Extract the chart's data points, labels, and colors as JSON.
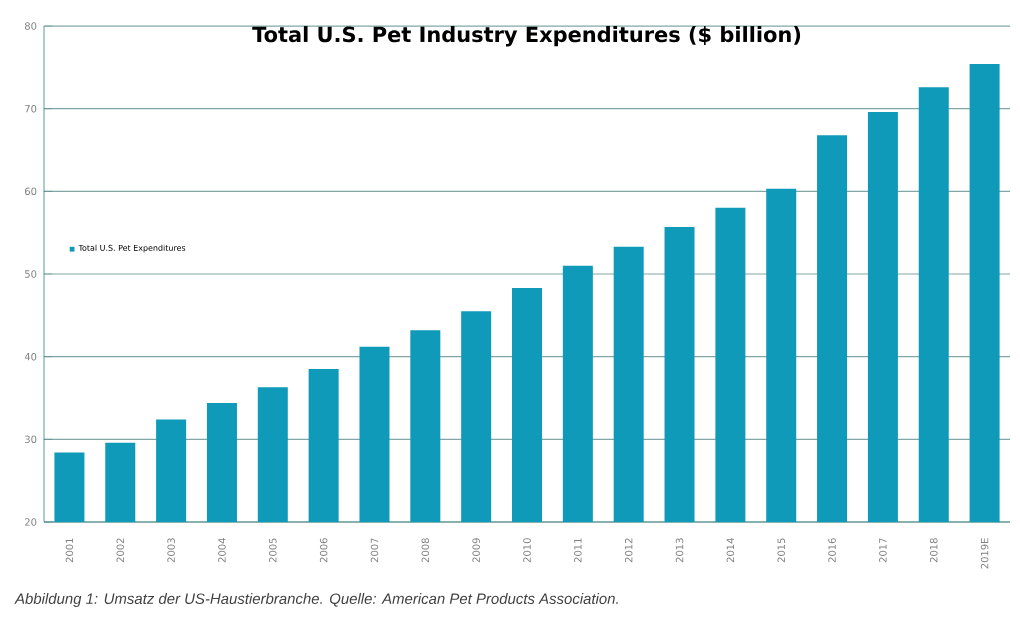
{
  "chart_data": {
    "type": "bar",
    "title": "Total U.S. Pet Industry Expenditures ($ billion)",
    "categories": [
      "2001",
      "2002",
      "2003",
      "2004",
      "2005",
      "2006",
      "2007",
      "2008",
      "2009",
      "2010",
      "2011",
      "2012",
      "2013",
      "2014",
      "2015",
      "2016",
      "2017",
      "2018",
      "2019E"
    ],
    "series": [
      {
        "name": "Total U.S. Pet Expenditures",
        "color": "#0e9ab8",
        "values": [
          28.4,
          29.6,
          32.4,
          34.4,
          36.3,
          38.5,
          41.2,
          43.2,
          45.5,
          48.3,
          51.0,
          53.3,
          55.7,
          58.0,
          60.3,
          66.8,
          69.6,
          72.6,
          75.4
        ]
      }
    ],
    "ylim": [
      20,
      80
    ],
    "yticks": [
      20,
      30,
      40,
      50,
      60,
      70,
      80
    ],
    "grid": "y",
    "legend": "left",
    "annotations": [
      "Abbildung 1: Umsatz der US-Haustierbranche. Quelle: American Pet Products Association."
    ]
  }
}
